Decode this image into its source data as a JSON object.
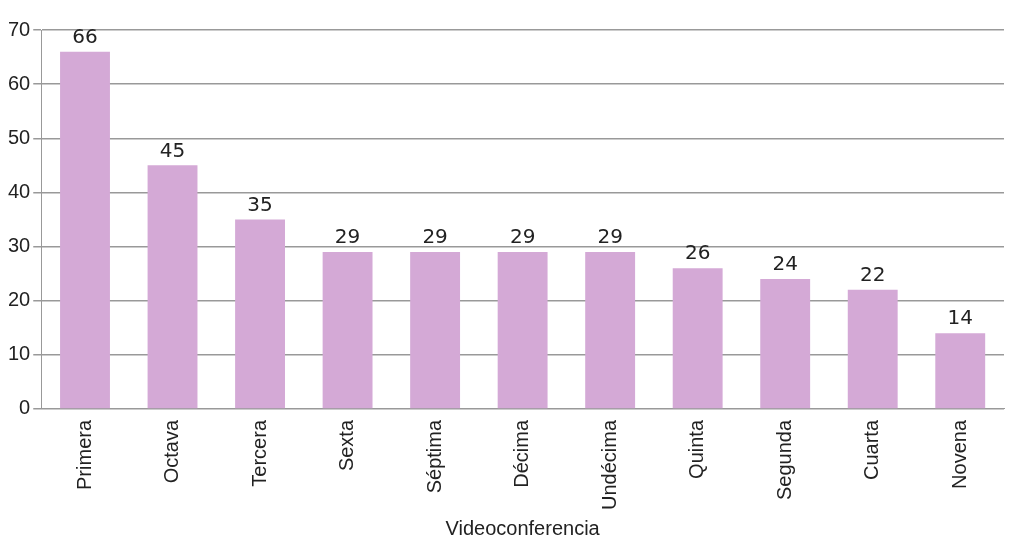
{
  "chart_data": {
    "type": "bar",
    "xlabel": "Videoconferencia",
    "categories": [
      "Primera",
      "Octava",
      "Tercera",
      "Sexta",
      "Séptima",
      "Décima",
      "Undécima",
      "Quinta",
      "Segunda",
      "Cuarta",
      "Novena"
    ],
    "values": [
      66,
      45,
      35,
      29,
      29,
      29,
      29,
      26,
      24,
      22,
      14
    ],
    "color": "#d4a9d6",
    "ylim": [
      0,
      70
    ],
    "yticks": [
      0,
      10,
      20,
      30,
      40,
      50,
      60,
      70
    ],
    "grid": "y",
    "data_labels": true,
    "legend": false
  }
}
